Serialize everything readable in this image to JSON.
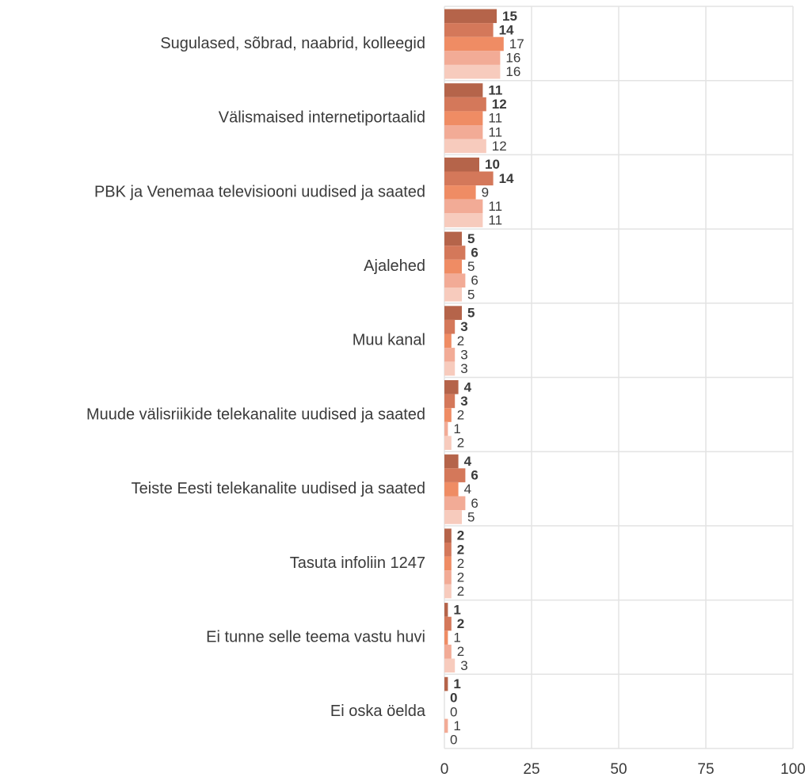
{
  "chart_data": {
    "type": "bar",
    "orientation": "horizontal",
    "categories": [
      "Sugulased, sõbrad, naabrid, kolleegid",
      "Välismaised internetiportaalid",
      "PBK ja Venemaa televisiooni uudised ja saated",
      "Ajalehed",
      "Muu kanal",
      "Muude välisriikide telekanalite uudised ja saated",
      "Teiste Eesti telekanalite uudised ja saated",
      "Tasuta infoliin 1247",
      "Ei tunne selle teema vastu huvi",
      "Ei oska öelda"
    ],
    "series": [
      {
        "color": "#b5644a",
        "bold": true,
        "values": [
          15,
          11,
          10,
          5,
          5,
          4,
          4,
          2,
          1,
          1
        ]
      },
      {
        "color": "#d4785a",
        "bold": true,
        "values": [
          14,
          12,
          14,
          6,
          3,
          3,
          6,
          2,
          2,
          0
        ]
      },
      {
        "color": "#ef8c64",
        "bold": false,
        "values": [
          17,
          11,
          9,
          5,
          2,
          2,
          4,
          2,
          1,
          0
        ]
      },
      {
        "color": "#f2ab96",
        "bold": false,
        "values": [
          16,
          11,
          11,
          6,
          3,
          1,
          6,
          2,
          2,
          1
        ]
      },
      {
        "color": "#f7cbbd",
        "bold": false,
        "values": [
          16,
          12,
          11,
          5,
          3,
          2,
          5,
          2,
          3,
          0
        ]
      }
    ],
    "xticks": [
      "0",
      "25",
      "50",
      "75",
      "100"
    ],
    "xlim": [
      0,
      100
    ],
    "grid": true,
    "legend": "none"
  }
}
